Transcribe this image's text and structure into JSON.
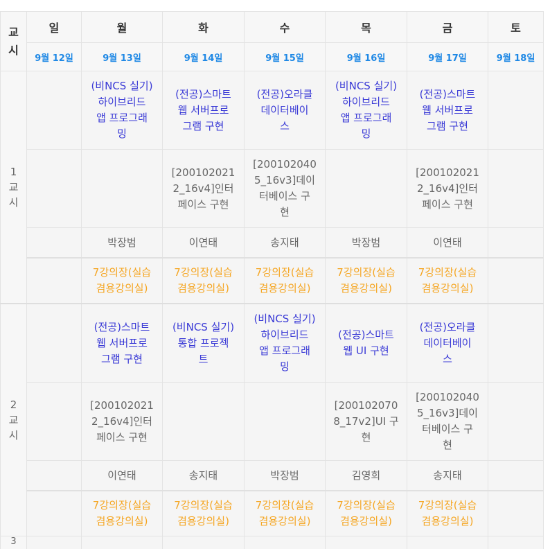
{
  "header": {
    "period_label": "교\n시",
    "days": [
      "일",
      "월",
      "화",
      "수",
      "목",
      "금",
      "토"
    ],
    "dates": [
      "9월 12일",
      "9월 13일",
      "9월 14일",
      "9월 15일",
      "9월 16일",
      "9월 17일",
      "9월 18일"
    ]
  },
  "periods": [
    {
      "label": "1\n교\n시",
      "subjects": [
        "",
        "(비NCS 실기)\n하이브리드\n앱 프로그래\n밍",
        "(전공)스마트\n웹 서버프로\n그램 구현",
        "(전공)오라클\n데이터베이\n스",
        "(비NCS 실기)\n하이브리드\n앱 프로그래\n밍",
        "(전공)스마트\n웹 서버프로\n그램 구현",
        ""
      ],
      "codes": [
        "",
        "",
        "[200102021\n2_16v4]인터\n페이스 구현",
        "[200102040\n5_16v3]데이\n터베이스 구\n현",
        "",
        "[200102021\n2_16v4]인터\n페이스 구현",
        ""
      ],
      "teachers": [
        "",
        "박장범",
        "이연태",
        "송지태",
        "박장범",
        "이연태",
        ""
      ],
      "rooms": [
        "",
        "7강의장(실습\n겸용강의실)",
        "7강의장(실습\n겸용강의실)",
        "7강의장(실습\n겸용강의실)",
        "7강의장(실습\n겸용강의실)",
        "7강의장(실습\n겸용강의실)",
        ""
      ]
    },
    {
      "label": "2\n교\n시",
      "subjects": [
        "",
        "(전공)스마트\n웹 서버프로\n그램 구현",
        "(비NCS 실기)\n통합 프로젝\n트",
        "(비NCS 실기)\n하이브리드\n앱 프로그래\n밍",
        "(전공)스마트\n웹 UI 구현",
        "(전공)오라클\n데이터베이\n스",
        ""
      ],
      "codes": [
        "",
        "[200102021\n2_16v4]인터\n페이스 구현",
        "",
        "",
        "[200102070\n8_17v2]UI 구\n현",
        "[200102040\n5_16v3]데이\n터베이스 구\n현",
        ""
      ],
      "teachers": [
        "",
        "이연태",
        "송지태",
        "박장범",
        "김영희",
        "송지태",
        ""
      ],
      "rooms": [
        "",
        "7강의장(실습\n겸용강의실)",
        "7강의장(실습\n겸용강의실)",
        "7강의장(실습\n겸용강의실)",
        "7강의장(실습\n겸용강의실)",
        "7강의장(실습\n겸용강의실)",
        ""
      ]
    }
  ],
  "next_period_label": "3"
}
